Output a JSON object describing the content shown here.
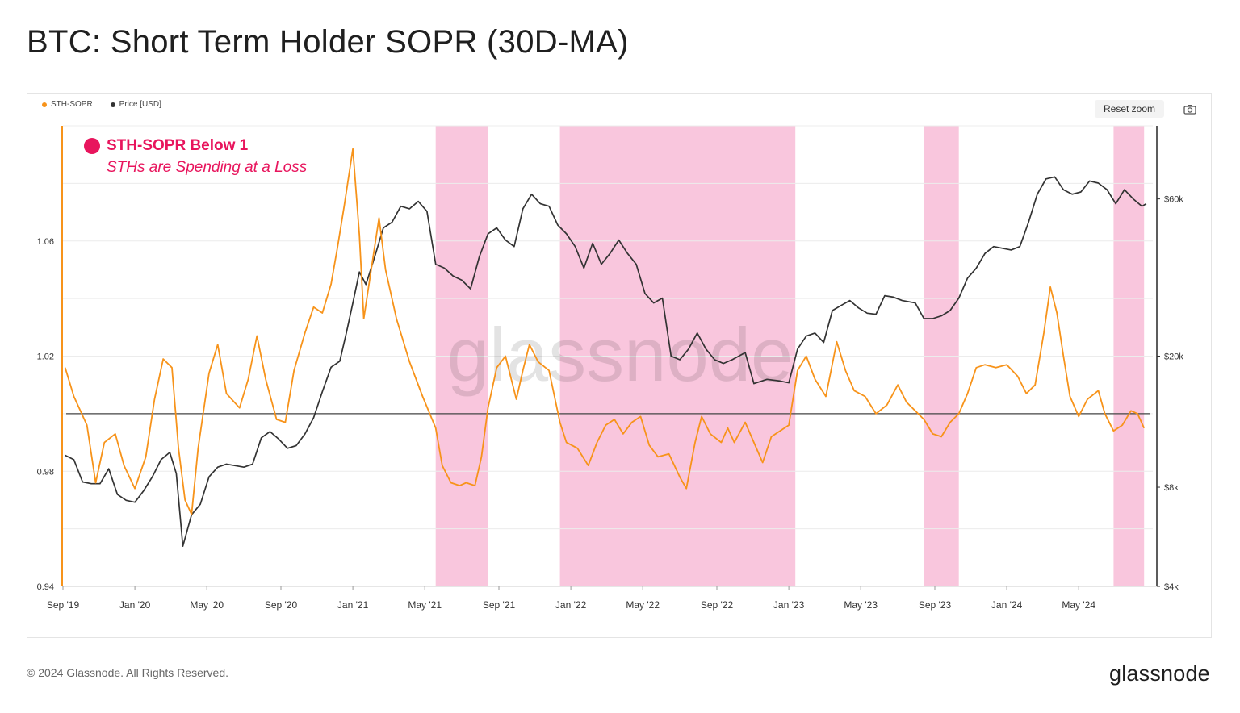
{
  "title": "BTC: Short Term Holder SOPR (30D-MA)",
  "legend": [
    {
      "label": "STH-SOPR",
      "color": "#f7931a"
    },
    {
      "label": "Price [USD]",
      "color": "#333333"
    }
  ],
  "controls": {
    "reset_zoom": "Reset zoom",
    "camera_icon": "camera-icon"
  },
  "annotation": {
    "title": "STH-SOPR Below 1",
    "subtitle": "STHs are Spending at a Loss",
    "color": "#e8155d"
  },
  "watermark": "glassnode",
  "footer": {
    "copyright": "© 2024 Glassnode. All Rights Reserved.",
    "brand": "glassnode"
  },
  "chart_data": {
    "type": "line",
    "title": "BTC: Short Term Holder SOPR (30D-MA)",
    "x_range": [
      2019.67,
      2024.67
    ],
    "x_ticks": [
      {
        "label": "Sep '19",
        "t": 2019.67
      },
      {
        "label": "Jan '20",
        "t": 2020.0
      },
      {
        "label": "May '20",
        "t": 2020.33
      },
      {
        "label": "Sep '20",
        "t": 2020.67
      },
      {
        "label": "Jan '21",
        "t": 2021.0
      },
      {
        "label": "May '21",
        "t": 2021.33
      },
      {
        "label": "Sep '21",
        "t": 2021.67
      },
      {
        "label": "Jan '22",
        "t": 2022.0
      },
      {
        "label": "May '22",
        "t": 2022.33
      },
      {
        "label": "Sep '22",
        "t": 2022.67
      },
      {
        "label": "Jan '23",
        "t": 2023.0
      },
      {
        "label": "May '23",
        "t": 2023.33
      },
      {
        "label": "Sep '23",
        "t": 2023.67
      },
      {
        "label": "Jan '24",
        "t": 2024.0
      },
      {
        "label": "May '24",
        "t": 2024.33
      }
    ],
    "left_axis": {
      "label": "STH-SOPR",
      "ylim": [
        0.94,
        1.1
      ],
      "ticks": [
        "1.06",
        "1.02",
        "0.98",
        "0.94"
      ],
      "tick_values": [
        1.06,
        1.02,
        0.98,
        0.94
      ]
    },
    "right_axis": {
      "label": "Price [USD]",
      "scale": "log",
      "ylim": [
        4000,
        100000
      ],
      "ticks": [
        "$60k",
        "$20k",
        "$8k",
        "$4k"
      ],
      "tick_values": [
        60000,
        20000,
        8000,
        4000
      ]
    },
    "reference_line": {
      "axis": "left",
      "value": 1.0,
      "color": "#444444"
    },
    "shaded_regions": [
      {
        "label": "STH-SOPR Below 1",
        "start": 2021.38,
        "end": 2021.62,
        "color": "#f9c6dd"
      },
      {
        "label": "STH-SOPR Below 1",
        "start": 2021.95,
        "end": 2023.03,
        "color": "#f9c6dd"
      },
      {
        "label": "STH-SOPR Below 1",
        "start": 2023.62,
        "end": 2023.78,
        "color": "#f9c6dd"
      },
      {
        "label": "STH-SOPR Below 1",
        "start": 2024.49,
        "end": 2024.63,
        "color": "#f9c6dd"
      }
    ],
    "series": [
      {
        "name": "STH-SOPR",
        "axis": "left",
        "color": "#f7931a",
        "points": [
          [
            2019.68,
            1.016
          ],
          [
            2019.72,
            1.006
          ],
          [
            2019.78,
            0.996
          ],
          [
            2019.82,
            0.976
          ],
          [
            2019.86,
            0.99
          ],
          [
            2019.91,
            0.993
          ],
          [
            2019.95,
            0.982
          ],
          [
            2020.0,
            0.974
          ],
          [
            2020.05,
            0.985
          ],
          [
            2020.09,
            1.005
          ],
          [
            2020.13,
            1.019
          ],
          [
            2020.17,
            1.016
          ],
          [
            2020.2,
            0.988
          ],
          [
            2020.23,
            0.97
          ],
          [
            2020.26,
            0.965
          ],
          [
            2020.29,
            0.988
          ],
          [
            2020.34,
            1.014
          ],
          [
            2020.38,
            1.024
          ],
          [
            2020.42,
            1.007
          ],
          [
            2020.48,
            1.002
          ],
          [
            2020.52,
            1.012
          ],
          [
            2020.56,
            1.027
          ],
          [
            2020.6,
            1.012
          ],
          [
            2020.65,
            0.998
          ],
          [
            2020.69,
            0.997
          ],
          [
            2020.73,
            1.015
          ],
          [
            2020.78,
            1.028
          ],
          [
            2020.82,
            1.037
          ],
          [
            2020.86,
            1.035
          ],
          [
            2020.9,
            1.045
          ],
          [
            2020.93,
            1.058
          ],
          [
            2020.96,
            1.072
          ],
          [
            2021.0,
            1.092
          ],
          [
            2021.03,
            1.062
          ],
          [
            2021.05,
            1.033
          ],
          [
            2021.08,
            1.048
          ],
          [
            2021.12,
            1.068
          ],
          [
            2021.15,
            1.05
          ],
          [
            2021.2,
            1.033
          ],
          [
            2021.26,
            1.018
          ],
          [
            2021.32,
            1.006
          ],
          [
            2021.38,
            0.995
          ],
          [
            2021.41,
            0.982
          ],
          [
            2021.45,
            0.976
          ],
          [
            2021.49,
            0.975
          ],
          [
            2021.52,
            0.976
          ],
          [
            2021.56,
            0.975
          ],
          [
            2021.59,
            0.985
          ],
          [
            2021.62,
            1.002
          ],
          [
            2021.66,
            1.016
          ],
          [
            2021.7,
            1.02
          ],
          [
            2021.75,
            1.005
          ],
          [
            2021.78,
            1.015
          ],
          [
            2021.81,
            1.024
          ],
          [
            2021.85,
            1.018
          ],
          [
            2021.9,
            1.015
          ],
          [
            2021.95,
            0.997
          ],
          [
            2021.98,
            0.99
          ],
          [
            2022.03,
            0.988
          ],
          [
            2022.08,
            0.982
          ],
          [
            2022.12,
            0.99
          ],
          [
            2022.16,
            0.996
          ],
          [
            2022.2,
            0.998
          ],
          [
            2022.24,
            0.993
          ],
          [
            2022.28,
            0.997
          ],
          [
            2022.32,
            0.999
          ],
          [
            2022.36,
            0.989
          ],
          [
            2022.4,
            0.985
          ],
          [
            2022.45,
            0.986
          ],
          [
            2022.5,
            0.978
          ],
          [
            2022.53,
            0.974
          ],
          [
            2022.57,
            0.99
          ],
          [
            2022.6,
            0.999
          ],
          [
            2022.64,
            0.993
          ],
          [
            2022.69,
            0.99
          ],
          [
            2022.72,
            0.995
          ],
          [
            2022.75,
            0.99
          ],
          [
            2022.8,
            0.997
          ],
          [
            2022.84,
            0.99
          ],
          [
            2022.88,
            0.983
          ],
          [
            2022.92,
            0.992
          ],
          [
            2022.96,
            0.994
          ],
          [
            2023.0,
            0.996
          ],
          [
            2023.04,
            1.015
          ],
          [
            2023.08,
            1.02
          ],
          [
            2023.12,
            1.012
          ],
          [
            2023.17,
            1.006
          ],
          [
            2023.22,
            1.025
          ],
          [
            2023.26,
            1.015
          ],
          [
            2023.3,
            1.008
          ],
          [
            2023.35,
            1.006
          ],
          [
            2023.4,
            1.0
          ],
          [
            2023.45,
            1.003
          ],
          [
            2023.5,
            1.01
          ],
          [
            2023.54,
            1.004
          ],
          [
            2023.58,
            1.001
          ],
          [
            2023.62,
            0.998
          ],
          [
            2023.66,
            0.993
          ],
          [
            2023.7,
            0.992
          ],
          [
            2023.74,
            0.997
          ],
          [
            2023.78,
            1.0
          ],
          [
            2023.82,
            1.007
          ],
          [
            2023.86,
            1.016
          ],
          [
            2023.9,
            1.017
          ],
          [
            2023.95,
            1.016
          ],
          [
            2024.0,
            1.017
          ],
          [
            2024.05,
            1.013
          ],
          [
            2024.09,
            1.007
          ],
          [
            2024.13,
            1.01
          ],
          [
            2024.17,
            1.028
          ],
          [
            2024.2,
            1.044
          ],
          [
            2024.23,
            1.035
          ],
          [
            2024.26,
            1.02
          ],
          [
            2024.29,
            1.006
          ],
          [
            2024.33,
            0.999
          ],
          [
            2024.37,
            1.005
          ],
          [
            2024.42,
            1.008
          ],
          [
            2024.45,
            1.0
          ],
          [
            2024.49,
            0.994
          ],
          [
            2024.53,
            0.996
          ],
          [
            2024.57,
            1.001
          ],
          [
            2024.6,
            1.0
          ],
          [
            2024.63,
            0.995
          ]
        ]
      },
      {
        "name": "Price [USD]",
        "axis": "right",
        "color": "#333333",
        "points": [
          [
            2019.68,
            10000
          ],
          [
            2019.72,
            9700
          ],
          [
            2019.76,
            8300
          ],
          [
            2019.8,
            8200
          ],
          [
            2019.84,
            8200
          ],
          [
            2019.88,
            9100
          ],
          [
            2019.92,
            7600
          ],
          [
            2019.96,
            7300
          ],
          [
            2020.0,
            7200
          ],
          [
            2020.04,
            7800
          ],
          [
            2020.08,
            8600
          ],
          [
            2020.12,
            9700
          ],
          [
            2020.16,
            10200
          ],
          [
            2020.19,
            8800
          ],
          [
            2020.22,
            5300
          ],
          [
            2020.26,
            6600
          ],
          [
            2020.3,
            7100
          ],
          [
            2020.34,
            8600
          ],
          [
            2020.38,
            9200
          ],
          [
            2020.42,
            9400
          ],
          [
            2020.46,
            9300
          ],
          [
            2020.5,
            9200
          ],
          [
            2020.54,
            9400
          ],
          [
            2020.58,
            11300
          ],
          [
            2020.62,
            11800
          ],
          [
            2020.66,
            11200
          ],
          [
            2020.7,
            10500
          ],
          [
            2020.74,
            10700
          ],
          [
            2020.78,
            11600
          ],
          [
            2020.82,
            13000
          ],
          [
            2020.86,
            15600
          ],
          [
            2020.9,
            18500
          ],
          [
            2020.94,
            19300
          ],
          [
            2020.97,
            23500
          ],
          [
            2021.0,
            29000
          ],
          [
            2021.03,
            36000
          ],
          [
            2021.06,
            33000
          ],
          [
            2021.1,
            40000
          ],
          [
            2021.14,
            49000
          ],
          [
            2021.18,
            51000
          ],
          [
            2021.22,
            57000
          ],
          [
            2021.26,
            56000
          ],
          [
            2021.3,
            59000
          ],
          [
            2021.34,
            55000
          ],
          [
            2021.38,
            38000
          ],
          [
            2021.42,
            37000
          ],
          [
            2021.46,
            35000
          ],
          [
            2021.5,
            34000
          ],
          [
            2021.54,
            32000
          ],
          [
            2021.58,
            40000
          ],
          [
            2021.62,
            47000
          ],
          [
            2021.66,
            49000
          ],
          [
            2021.7,
            45000
          ],
          [
            2021.74,
            43000
          ],
          [
            2021.78,
            56000
          ],
          [
            2021.82,
            62000
          ],
          [
            2021.86,
            58000
          ],
          [
            2021.9,
            57000
          ],
          [
            2021.94,
            50000
          ],
          [
            2021.98,
            47000
          ],
          [
            2022.02,
            43000
          ],
          [
            2022.06,
            37000
          ],
          [
            2022.1,
            44000
          ],
          [
            2022.14,
            38000
          ],
          [
            2022.18,
            41000
          ],
          [
            2022.22,
            45000
          ],
          [
            2022.26,
            41000
          ],
          [
            2022.3,
            38000
          ],
          [
            2022.34,
            31000
          ],
          [
            2022.38,
            29000
          ],
          [
            2022.42,
            30000
          ],
          [
            2022.46,
            20000
          ],
          [
            2022.5,
            19500
          ],
          [
            2022.54,
            21000
          ],
          [
            2022.58,
            23500
          ],
          [
            2022.62,
            21000
          ],
          [
            2022.66,
            19500
          ],
          [
            2022.7,
            19000
          ],
          [
            2022.74,
            19500
          ],
          [
            2022.8,
            20500
          ],
          [
            2022.84,
            16500
          ],
          [
            2022.9,
            17000
          ],
          [
            2022.96,
            16800
          ],
          [
            2023.0,
            16600
          ],
          [
            2023.04,
            21000
          ],
          [
            2023.08,
            23000
          ],
          [
            2023.12,
            23500
          ],
          [
            2023.16,
            22000
          ],
          [
            2023.2,
            27500
          ],
          [
            2023.24,
            28500
          ],
          [
            2023.28,
            29500
          ],
          [
            2023.32,
            28000
          ],
          [
            2023.36,
            27000
          ],
          [
            2023.4,
            26800
          ],
          [
            2023.44,
            30500
          ],
          [
            2023.48,
            30200
          ],
          [
            2023.52,
            29500
          ],
          [
            2023.58,
            29000
          ],
          [
            2023.62,
            26000
          ],
          [
            2023.66,
            26000
          ],
          [
            2023.7,
            26500
          ],
          [
            2023.74,
            27500
          ],
          [
            2023.78,
            30000
          ],
          [
            2023.82,
            34500
          ],
          [
            2023.86,
            37000
          ],
          [
            2023.9,
            41000
          ],
          [
            2023.94,
            43000
          ],
          [
            2023.98,
            42500
          ],
          [
            2024.02,
            42000
          ],
          [
            2024.06,
            43000
          ],
          [
            2024.1,
            51000
          ],
          [
            2024.14,
            62000
          ],
          [
            2024.18,
            69000
          ],
          [
            2024.22,
            70000
          ],
          [
            2024.26,
            64000
          ],
          [
            2024.3,
            62000
          ],
          [
            2024.34,
            63000
          ],
          [
            2024.38,
            68000
          ],
          [
            2024.42,
            67000
          ],
          [
            2024.46,
            64000
          ],
          [
            2024.5,
            58000
          ],
          [
            2024.54,
            64000
          ],
          [
            2024.58,
            60000
          ],
          [
            2024.62,
            57000
          ],
          [
            2024.64,
            58000
          ]
        ]
      }
    ]
  }
}
